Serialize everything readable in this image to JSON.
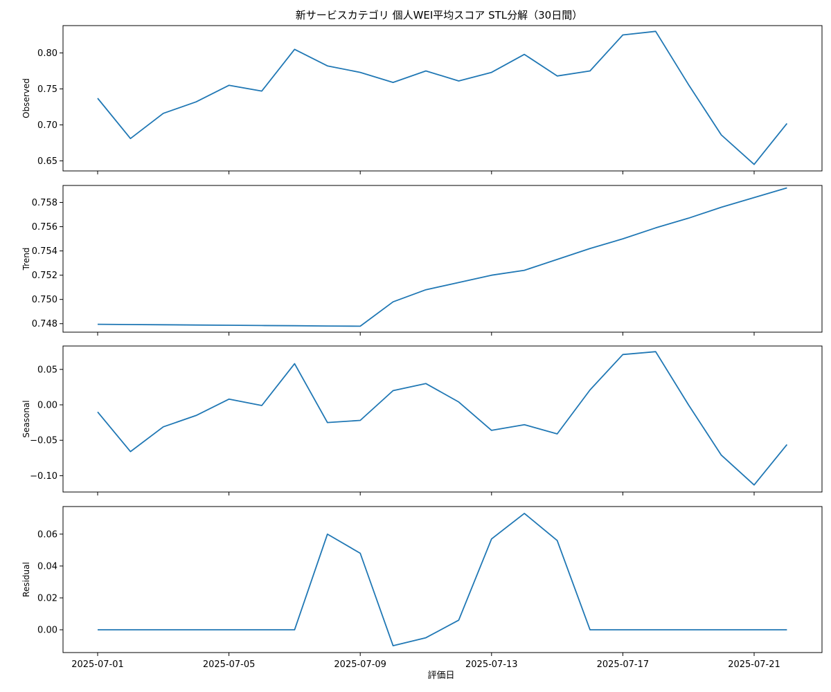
{
  "chart_data": {
    "type": "line",
    "title": "新サービスカテゴリ 個人WEI平均スコア STL分解（30日間）",
    "xlabel": "評価日",
    "x": [
      "2025-07-01",
      "2025-07-02",
      "2025-07-03",
      "2025-07-04",
      "2025-07-05",
      "2025-07-06",
      "2025-07-07",
      "2025-07-08",
      "2025-07-09",
      "2025-07-10",
      "2025-07-11",
      "2025-07-12",
      "2025-07-13",
      "2025-07-14",
      "2025-07-15",
      "2025-07-16",
      "2025-07-17",
      "2025-07-18",
      "2025-07-19",
      "2025-07-20",
      "2025-07-21",
      "2025-07-22"
    ],
    "xticks": [
      "2025-07-01",
      "2025-07-05",
      "2025-07-09",
      "2025-07-13",
      "2025-07-17",
      "2025-07-21"
    ],
    "line_color": "#1f77b4",
    "panels": [
      {
        "ylabel": "Observed",
        "ylim": [
          0.636,
          0.838
        ],
        "yticks": [
          "0.65",
          "0.70",
          "0.75",
          "0.80"
        ],
        "values": [
          0.737,
          0.681,
          0.716,
          0.732,
          0.755,
          0.747,
          0.805,
          0.782,
          0.773,
          0.759,
          0.775,
          0.761,
          0.773,
          0.798,
          0.768,
          0.775,
          0.825,
          0.83,
          0.756,
          0.686,
          0.645,
          0.702
        ]
      },
      {
        "ylabel": "Trend",
        "ylim": [
          0.7473,
          0.7594
        ],
        "yticks": [
          "0.748",
          "0.750",
          "0.752",
          "0.754",
          "0.756",
          "0.758"
        ],
        "values": [
          0.74795,
          0.74793,
          0.74791,
          0.74789,
          0.74787,
          0.74785,
          0.74783,
          0.74781,
          0.74779,
          0.7498,
          0.7508,
          0.7514,
          0.752,
          0.7524,
          0.7533,
          0.7542,
          0.755,
          0.7559,
          0.7567,
          0.7576,
          0.7584,
          0.7592
        ]
      },
      {
        "ylabel": "Seasonal",
        "ylim": [
          -0.123,
          0.083
        ],
        "yticks": [
          "−0.10",
          "−0.05",
          "0.00",
          "0.05"
        ],
        "values": [
          -0.01,
          -0.066,
          -0.031,
          -0.015,
          0.008,
          -0.001,
          0.058,
          -0.025,
          -0.022,
          0.02,
          0.03,
          0.004,
          -0.036,
          -0.028,
          -0.041,
          0.021,
          0.071,
          0.075,
          0.0,
          -0.071,
          -0.113,
          -0.056
        ]
      },
      {
        "ylabel": "Residual",
        "ylim": [
          -0.0143,
          0.0773
        ],
        "yticks": [
          "0.00",
          "0.02",
          "0.04",
          "0.06"
        ],
        "values": [
          0,
          0,
          0,
          0,
          0,
          0,
          0,
          0.06,
          0.048,
          -0.01,
          -0.005,
          0.006,
          0.057,
          0.073,
          0.056,
          0,
          0,
          0,
          0,
          0,
          0,
          0
        ]
      }
    ]
  }
}
